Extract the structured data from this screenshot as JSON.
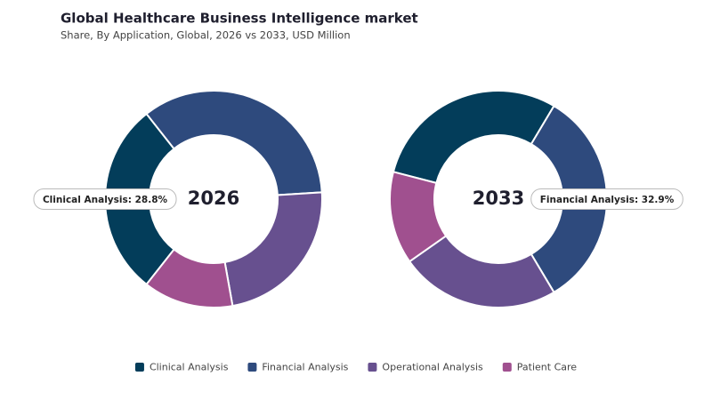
{
  "title": "Global Healthcare Business Intelligence market",
  "subtitle": "Share, By Application, Global, 2026 vs 2033, USD Million",
  "chart_data": [
    {
      "type": "pie",
      "title": "2026",
      "categories": [
        "Clinical Analysis",
        "Financial Analysis",
        "Operational Analysis",
        "Patient Care"
      ],
      "values": [
        28.8,
        34.6,
        23.2,
        13.4
      ],
      "value_labels": [
        "Clinical Analysis: 28.8%",
        null,
        null,
        null
      ],
      "colors": [
        "#033d5a",
        "#2e4a7d",
        "#67508f",
        "#a0508f"
      ]
    },
    {
      "type": "pie",
      "title": "2033",
      "categories": [
        "Clinical Analysis",
        "Financial Analysis",
        "Operational Analysis",
        "Patient Care"
      ],
      "values": [
        29.5,
        32.9,
        23.8,
        13.8
      ],
      "value_labels": [
        null,
        "Financial Analysis: 32.9%",
        null,
        null
      ],
      "colors": [
        "#033d5a",
        "#2e4a7d",
        "#67508f",
        "#a0508f"
      ]
    }
  ]
}
